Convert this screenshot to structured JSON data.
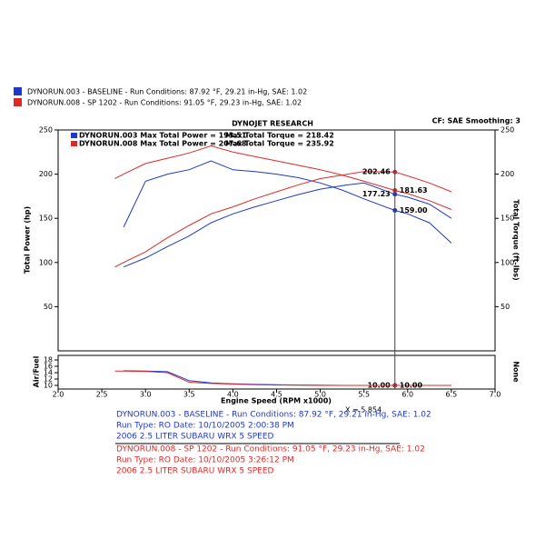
{
  "runs": [
    {
      "color": "#2038c8",
      "header": "DYNORUN.003 - BASELINE -  Run Conditions: 87.92 °F, 29.21 in-Hg, SAE: 1.02",
      "max_power": "DYNORUN.003 Max Total Power = 193.51",
      "max_torque": "Max Total Torque = 218.42",
      "details": [
        "DYNORUN.003 - BASELINE -  Run Conditions: 87.92 °F, 29.21 in-Hg, SAE: 1.02",
        "Run Type: RO  Date: 10/10/2005 2:00:38 PM",
        "2006 2.5 LITER SUBARU WRX 5 SPEED"
      ]
    },
    {
      "color": "#e02828",
      "header": "DYNORUN.008 - SP 1202 -  Run Conditions: 91.05 °F, 29.23 in-Hg, SAE: 1.02",
      "max_power": "DYNORUN.008 Max Total Power = 207.68",
      "max_torque": "Max Total Torque = 235.92",
      "details": [
        "DYNORUN.008 - SP 1202 -  Run Conditions: 91.05 °F, 29.23 in-Hg, SAE: 1.02",
        "Run Type: RO  Date: 10/10/2005 3:26:12 PM",
        "2006 2.5 LITER SUBARU WRX 5 SPEED"
      ]
    }
  ],
  "chart_data": [
    {
      "type": "line",
      "title": "DYNOJET RESEARCH",
      "subtitle": "CF: SAE Smoothing: 3",
      "y_label": "Total Power (hp)",
      "y2_label": "Total Torque (ft-lbs)",
      "cursor": {
        "value": 5.854,
        "label": "X = 5.854"
      },
      "x": [
        2.65,
        2.75,
        3.0,
        3.25,
        3.5,
        3.75,
        4.0,
        4.25,
        4.5,
        4.75,
        5.0,
        5.25,
        5.5,
        5.854,
        6.0,
        6.25,
        6.5
      ],
      "xlim": [
        2,
        7
      ],
      "ylim": [
        0,
        250
      ],
      "y2lim": [
        0,
        250
      ],
      "yticks": [
        50,
        100,
        150,
        200,
        250
      ],
      "y2ticks": [
        50,
        100,
        150,
        200,
        250
      ],
      "series": [
        {
          "color": "#2038c8",
          "values": [
            null,
            95,
            105,
            118,
            130,
            145,
            155,
            163,
            170,
            177,
            183,
            187,
            190,
            177.23,
            174,
            166,
            150
          ],
          "value_labels": [
            null,
            null,
            null,
            null,
            null,
            null,
            null,
            null,
            null,
            null,
            null,
            null,
            null,
            "177.23",
            null,
            null,
            null
          ]
        },
        {
          "color": "#2038c8",
          "axis": "y2",
          "values": [
            null,
            140,
            192,
            200,
            205,
            215,
            205,
            203,
            200,
            196,
            190,
            182,
            172,
            159,
            155,
            145,
            122
          ],
          "value_labels": [
            null,
            null,
            null,
            null,
            null,
            null,
            null,
            null,
            null,
            null,
            null,
            null,
            null,
            "159.00",
            null,
            null,
            null
          ]
        },
        {
          "color": "#e02828",
          "values": [
            95,
            100,
            112,
            128,
            142,
            155,
            163,
            172,
            180,
            188,
            195,
            199,
            203,
            202.46,
            198,
            190,
            180
          ],
          "value_labels": [
            null,
            null,
            null,
            null,
            null,
            null,
            null,
            null,
            null,
            null,
            null,
            null,
            null,
            "202.46",
            null,
            null,
            null
          ]
        },
        {
          "color": "#e02828",
          "axis": "y2",
          "values": [
            195,
            200,
            212,
            218,
            224,
            232,
            225,
            220,
            215,
            210,
            205,
            199,
            192,
            181.63,
            178,
            170,
            160
          ],
          "value_labels": [
            null,
            null,
            null,
            null,
            null,
            null,
            null,
            null,
            null,
            null,
            null,
            null,
            null,
            "181.63",
            null,
            null,
            null
          ]
        }
      ]
    },
    {
      "type": "line",
      "y_label": "Air/Fuel",
      "y2_label": "None",
      "x_label": "Engine Speed (RPM x1000)",
      "x": [
        2.65,
        2.75,
        3.0,
        3.25,
        3.5,
        3.75,
        4.0,
        4.25,
        4.5,
        4.75,
        5.0,
        5.25,
        5.5,
        5.854,
        6.0,
        6.25,
        6.5
      ],
      "xlim": [
        2,
        7
      ],
      "ylim": [
        10,
        18
      ],
      "yticks": [
        10,
        12,
        14,
        16,
        18
      ],
      "xticks": [
        {
          "value": 2,
          "label": "2.0"
        },
        2.5,
        {
          "value": 3,
          "label": "3.0"
        },
        3.5,
        {
          "value": 4,
          "label": "4.0"
        },
        4.5,
        {
          "value": 5,
          "label": "5.0"
        },
        5.5,
        {
          "value": 6,
          "label": "6.0"
        },
        6.5,
        {
          "value": 7,
          "label": "7.0"
        }
      ],
      "series": [
        {
          "color": "#2038c8",
          "values": [
            null,
            14.6,
            14.5,
            14.3,
            11.5,
            10.8,
            10.5,
            10.3,
            10.2,
            10.1,
            10.05,
            10,
            10,
            10,
            10,
            10,
            10
          ],
          "value_labels": [
            null,
            null,
            null,
            null,
            null,
            null,
            null,
            null,
            null,
            null,
            null,
            null,
            null,
            "10.00",
            null,
            null,
            null
          ]
        },
        {
          "color": "#e02828",
          "values": [
            14.5,
            14.5,
            14.4,
            14,
            11,
            10.6,
            10.4,
            10.2,
            10.1,
            10.05,
            10,
            10,
            10,
            10,
            10,
            10,
            10
          ],
          "value_labels": [
            null,
            null,
            null,
            null,
            null,
            null,
            null,
            null,
            null,
            null,
            null,
            null,
            null,
            "10.00",
            null,
            null,
            null
          ]
        }
      ]
    }
  ]
}
